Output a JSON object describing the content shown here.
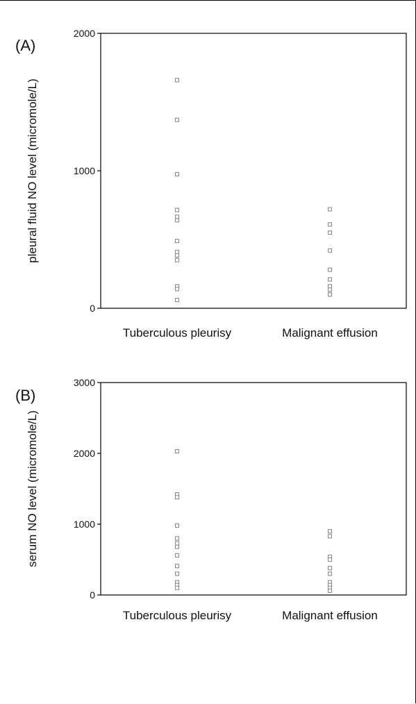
{
  "chart_data": [
    {
      "type": "scatter",
      "panel_label": "(A)",
      "ylabel": "pleural fluid NO level (micromole/L)",
      "ylim": [
        0,
        2000
      ],
      "yticks": [
        "0",
        "1000",
        "2000"
      ],
      "categories": [
        "Tuberculous pleurisy",
        "Malignant effusion"
      ],
      "series": [
        {
          "category": "Tuberculous pleurisy",
          "values": [
            1660,
            1370,
            975,
            715,
            665,
            640,
            490,
            410,
            385,
            350,
            160,
            140,
            60
          ]
        },
        {
          "category": "Malignant effusion",
          "values": [
            720,
            610,
            550,
            420,
            280,
            210,
            160,
            135,
            100
          ]
        }
      ],
      "grid": false,
      "marker_color": "#8a8a8a"
    },
    {
      "type": "scatter",
      "panel_label": "(B)",
      "ylabel": "serum NO level (micromole/L)",
      "ylim": [
        0,
        3000
      ],
      "yticks": [
        "0",
        "1000",
        "2000",
        "3000"
      ],
      "categories": [
        "Tuberculous pleurisy",
        "Malignant effusion"
      ],
      "series": [
        {
          "category": "Tuberculous pleurisy",
          "values": [
            2030,
            1420,
            1380,
            980,
            800,
            730,
            680,
            560,
            410,
            300,
            180,
            140,
            100
          ]
        },
        {
          "category": "Malignant effusion",
          "values": [
            900,
            830,
            540,
            500,
            380,
            300,
            180,
            140,
            100,
            60
          ]
        }
      ],
      "grid": false,
      "marker_color": "#8a8a8a"
    }
  ]
}
